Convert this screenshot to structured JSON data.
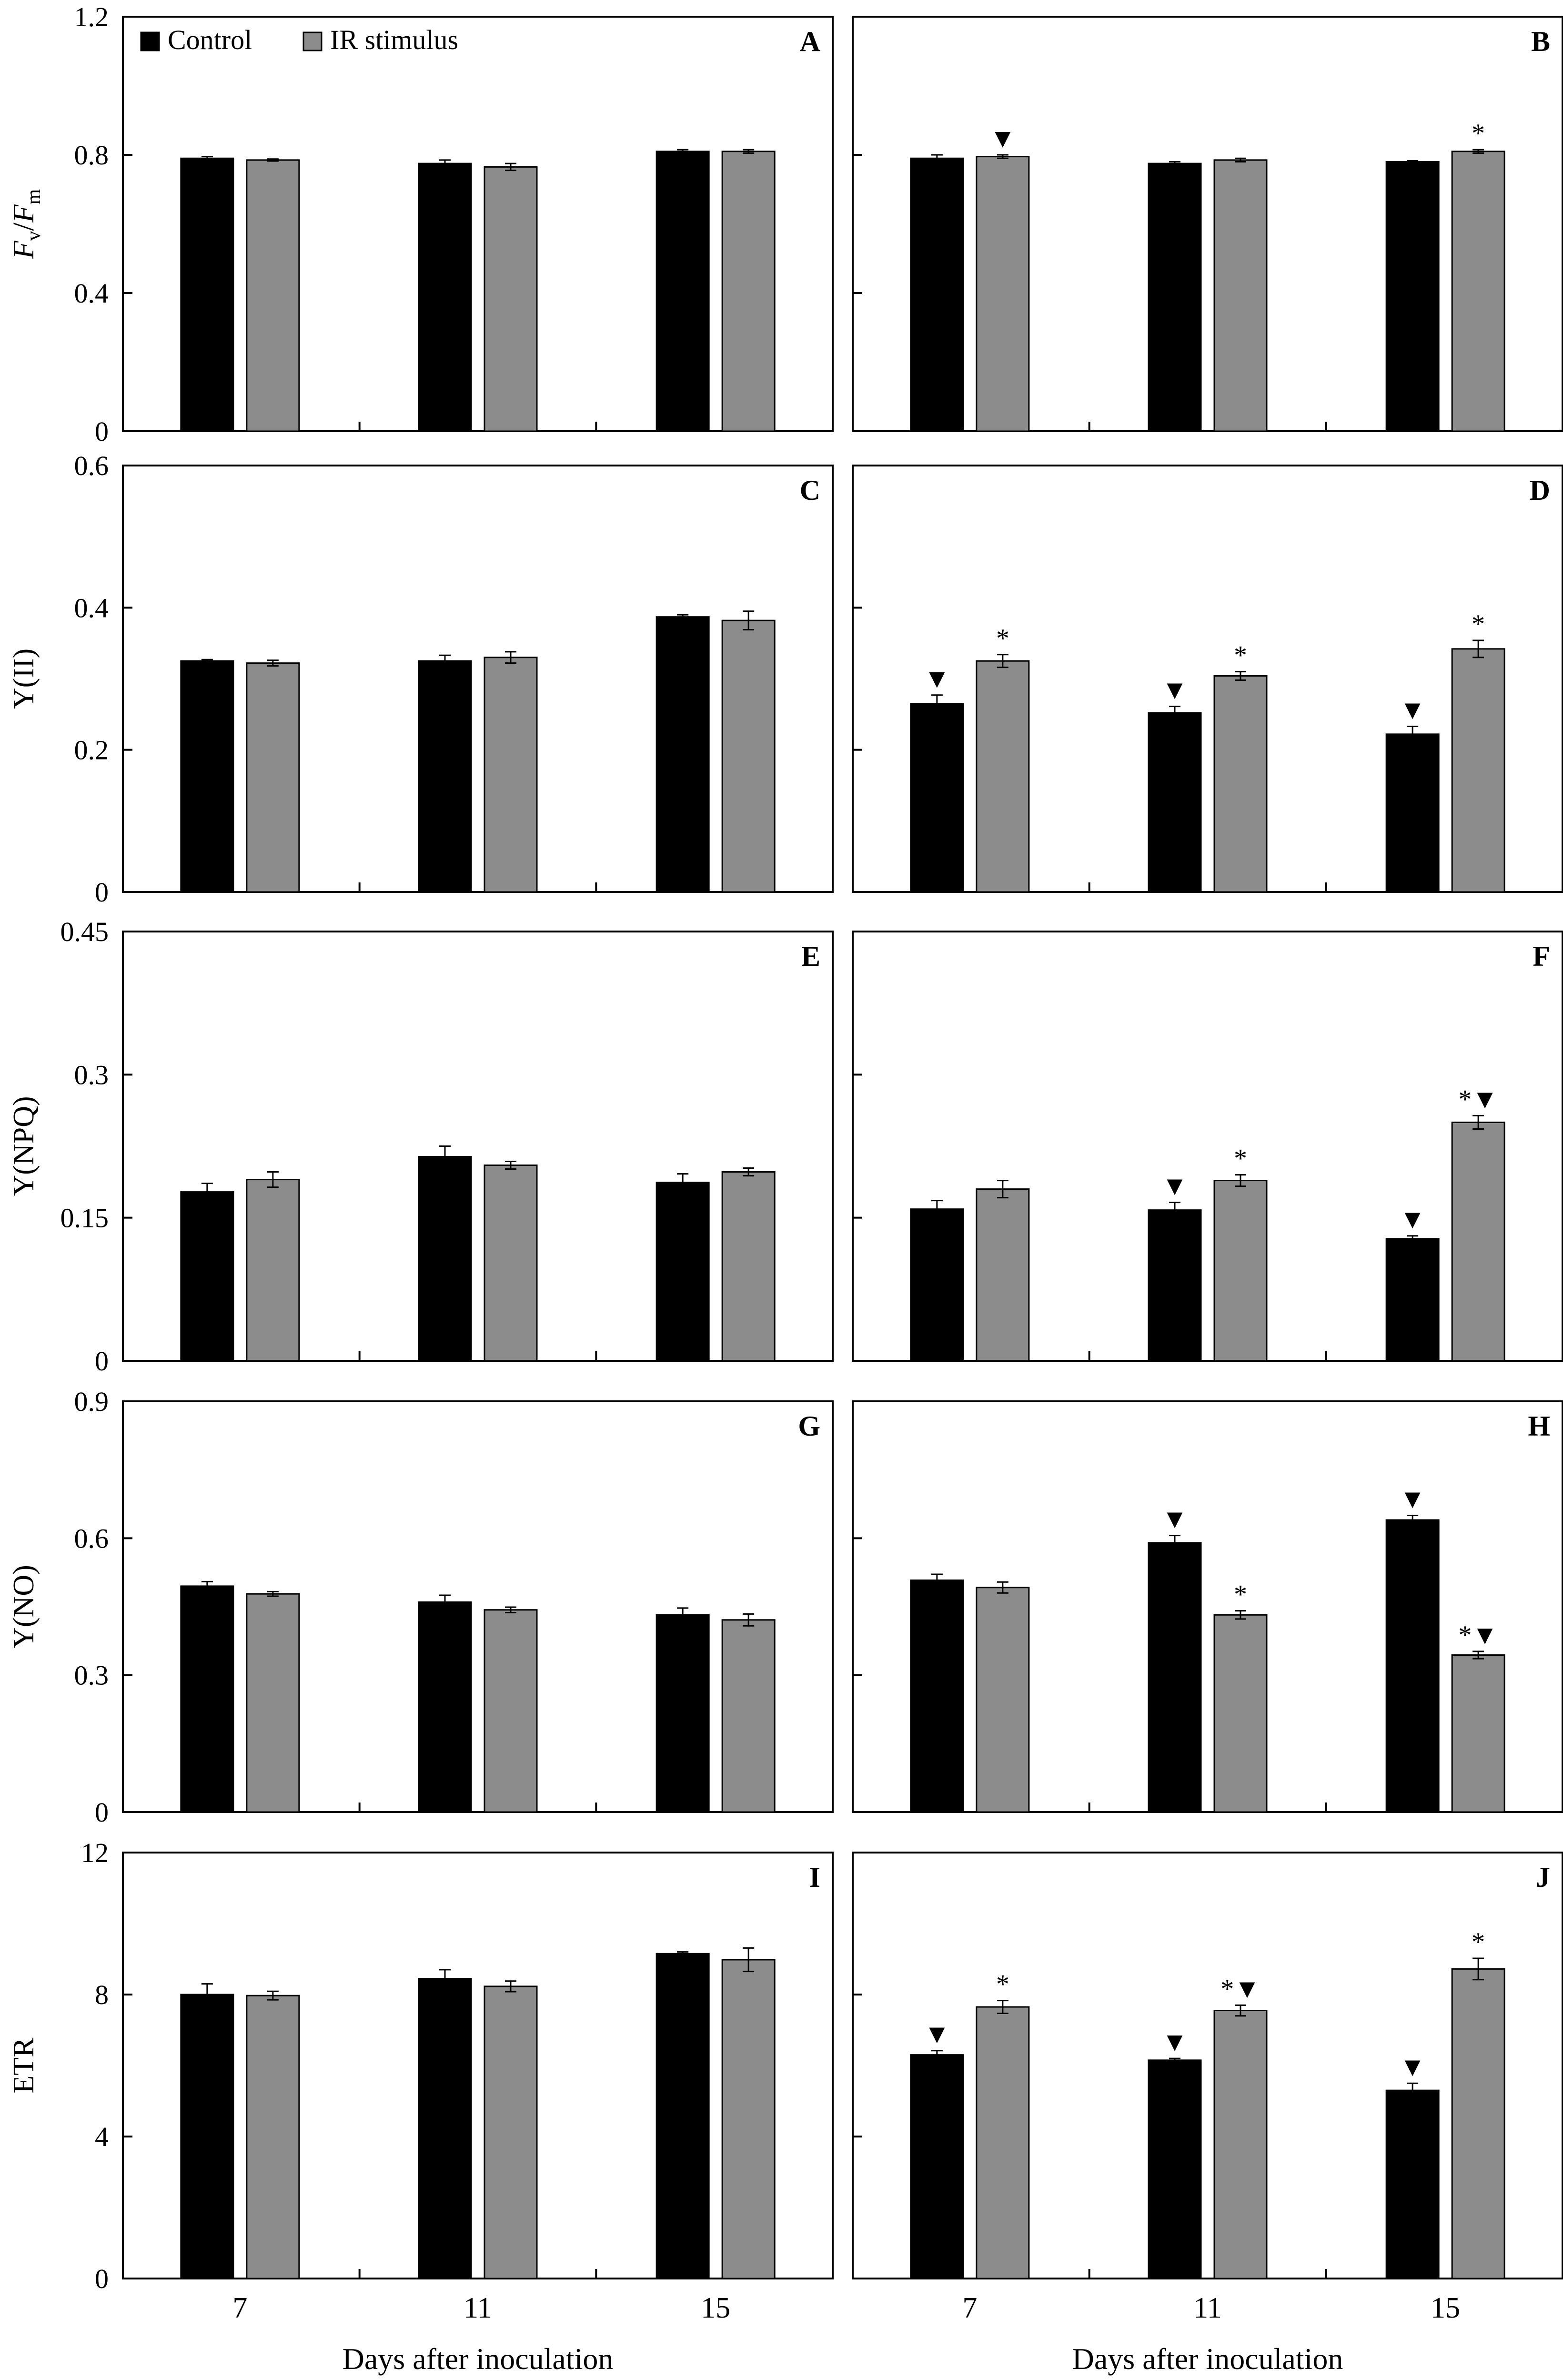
{
  "figure": {
    "categories": [
      "7",
      "11",
      "15"
    ],
    "xlabel": "Days after inoculation",
    "legend": [
      {
        "label": "Control",
        "color": "#000000"
      },
      {
        "label": "IR stimulus",
        "color": "#8c8c8c"
      }
    ],
    "colors": {
      "control": "#000000",
      "ir": "#8c8c8c",
      "axis": "#000000"
    }
  },
  "chart_data": [
    {
      "type": "bar",
      "panel": "A",
      "ylabel": "Fv/Fm",
      "ylim": [
        0,
        1.2
      ],
      "yticks": [
        "0",
        "0.4",
        "0.8",
        "1.2"
      ],
      "categories": [
        "7",
        "11",
        "15"
      ],
      "series": [
        {
          "name": "Control",
          "values": [
            0.79,
            0.775,
            0.81
          ],
          "errors": [
            0.005,
            0.01,
            0.005
          ],
          "marks": [
            "",
            "",
            ""
          ]
        },
        {
          "name": "IR stimulus",
          "values": [
            0.785,
            0.765,
            0.81
          ],
          "errors": [
            0.003,
            0.01,
            0.005
          ],
          "marks": [
            "",
            "",
            ""
          ]
        }
      ]
    },
    {
      "type": "bar",
      "panel": "B",
      "ylabel": "",
      "ylim": [
        0,
        1.2
      ],
      "yticks": [
        "0",
        "0.4",
        "0.8",
        "1.2"
      ],
      "categories": [
        "7",
        "11",
        "15"
      ],
      "series": [
        {
          "name": "Control",
          "values": [
            0.79,
            0.775,
            0.78
          ],
          "errors": [
            0.01,
            0.005,
            0.003
          ],
          "marks": [
            "",
            "",
            ""
          ]
        },
        {
          "name": "IR stimulus",
          "values": [
            0.795,
            0.785,
            0.81
          ],
          "errors": [
            0.005,
            0.005,
            0.005
          ],
          "marks": [
            "▼",
            "",
            "*"
          ]
        }
      ]
    },
    {
      "type": "bar",
      "panel": "C",
      "ylabel": "Y(II)",
      "ylim": [
        0,
        0.6
      ],
      "yticks": [
        "0",
        "0.2",
        "0.4",
        "0.6"
      ],
      "categories": [
        "7",
        "11",
        "15"
      ],
      "series": [
        {
          "name": "Control",
          "values": [
            0.325,
            0.325,
            0.387
          ],
          "errors": [
            0.002,
            0.008,
            0.003
          ],
          "marks": [
            "",
            "",
            ""
          ]
        },
        {
          "name": "IR stimulus",
          "values": [
            0.322,
            0.33,
            0.382
          ],
          "errors": [
            0.004,
            0.008,
            0.013
          ],
          "marks": [
            "",
            "",
            ""
          ]
        }
      ]
    },
    {
      "type": "bar",
      "panel": "D",
      "ylabel": "",
      "ylim": [
        0,
        0.6
      ],
      "yticks": [
        "0",
        "0.2",
        "0.4",
        "0.6"
      ],
      "categories": [
        "7",
        "11",
        "15"
      ],
      "series": [
        {
          "name": "Control",
          "values": [
            0.265,
            0.252,
            0.222
          ],
          "errors": [
            0.012,
            0.009,
            0.011
          ],
          "marks": [
            "▼",
            "▼",
            "▼"
          ]
        },
        {
          "name": "IR stimulus",
          "values": [
            0.325,
            0.304,
            0.342
          ],
          "errors": [
            0.009,
            0.006,
            0.012
          ],
          "marks": [
            "*",
            "*",
            "*"
          ]
        }
      ]
    },
    {
      "type": "bar",
      "panel": "E",
      "ylabel": "Y(NPQ)",
      "ylim": [
        0,
        0.45
      ],
      "yticks": [
        "0",
        "0.15",
        "0.3",
        "0.45"
      ],
      "categories": [
        "7",
        "11",
        "15"
      ],
      "series": [
        {
          "name": "Control",
          "values": [
            0.177,
            0.214,
            0.187
          ],
          "errors": [
            0.009,
            0.011,
            0.009
          ],
          "marks": [
            "",
            "",
            ""
          ]
        },
        {
          "name": "IR stimulus",
          "values": [
            0.19,
            0.205,
            0.198
          ],
          "errors": [
            0.008,
            0.004,
            0.004
          ],
          "marks": [
            "",
            "",
            ""
          ]
        }
      ]
    },
    {
      "type": "bar",
      "panel": "F",
      "ylabel": "",
      "ylim": [
        0,
        0.45
      ],
      "yticks": [
        "0",
        "0.15",
        "0.3",
        "0.45"
      ],
      "categories": [
        "7",
        "11",
        "15"
      ],
      "series": [
        {
          "name": "Control",
          "values": [
            0.159,
            0.158,
            0.128
          ],
          "errors": [
            0.009,
            0.008,
            0.003
          ],
          "marks": [
            "",
            "▼",
            "▼"
          ]
        },
        {
          "name": "IR stimulus",
          "values": [
            0.18,
            0.189,
            0.25
          ],
          "errors": [
            0.009,
            0.006,
            0.007
          ],
          "marks": [
            "",
            "*",
            "*▼"
          ]
        }
      ]
    },
    {
      "type": "bar",
      "panel": "G",
      "ylabel": "Y(NO)",
      "ylim": [
        0,
        0.9
      ],
      "yticks": [
        "0",
        "0.3",
        "0.6",
        "0.9"
      ],
      "categories": [
        "7",
        "11",
        "15"
      ],
      "series": [
        {
          "name": "Control",
          "values": [
            0.495,
            0.46,
            0.432
          ],
          "errors": [
            0.01,
            0.015,
            0.015
          ],
          "marks": [
            "",
            "",
            ""
          ]
        },
        {
          "name": "IR stimulus",
          "values": [
            0.478,
            0.443,
            0.421
          ],
          "errors": [
            0.005,
            0.006,
            0.013
          ],
          "marks": [
            "",
            "",
            ""
          ]
        }
      ]
    },
    {
      "type": "bar",
      "panel": "H",
      "ylabel": "",
      "ylim": [
        0,
        0.9
      ],
      "yticks": [
        "0",
        "0.3",
        "0.6",
        "0.9"
      ],
      "categories": [
        "7",
        "11",
        "15"
      ],
      "series": [
        {
          "name": "Control",
          "values": [
            0.508,
            0.59,
            0.64
          ],
          "errors": [
            0.013,
            0.016,
            0.01
          ],
          "marks": [
            "",
            "▼",
            "▼"
          ]
        },
        {
          "name": "IR stimulus",
          "values": [
            0.492,
            0.432,
            0.344
          ],
          "errors": [
            0.012,
            0.009,
            0.008
          ],
          "marks": [
            "",
            "*",
            "*▼"
          ]
        }
      ]
    },
    {
      "type": "bar",
      "panel": "I",
      "ylabel": "ETR",
      "ylim": [
        0,
        12
      ],
      "yticks": [
        "0",
        "4",
        "8",
        "12"
      ],
      "categories": [
        "7",
        "11",
        "15"
      ],
      "series": [
        {
          "name": "Control",
          "values": [
            8.0,
            8.45,
            9.15
          ],
          "errors": [
            0.3,
            0.25,
            0.05
          ],
          "marks": [
            "",
            "",
            ""
          ]
        },
        {
          "name": "IR stimulus",
          "values": [
            7.97,
            8.23,
            8.98
          ],
          "errors": [
            0.12,
            0.15,
            0.33
          ],
          "marks": [
            "",
            "",
            ""
          ]
        }
      ]
    },
    {
      "type": "bar",
      "panel": "J",
      "ylabel": "",
      "ylim": [
        0,
        12
      ],
      "yticks": [
        "0",
        "4",
        "8",
        "12"
      ],
      "categories": [
        "7",
        "11",
        "15"
      ],
      "series": [
        {
          "name": "Control",
          "values": [
            6.3,
            6.15,
            5.3
          ],
          "errors": [
            0.12,
            0.05,
            0.2
          ],
          "marks": [
            "▼",
            "▼",
            "▼"
          ]
        },
        {
          "name": "IR stimulus",
          "values": [
            7.65,
            7.55,
            8.72
          ],
          "errors": [
            0.18,
            0.15,
            0.3
          ],
          "marks": [
            "*",
            "*▼",
            "*"
          ]
        }
      ]
    }
  ]
}
